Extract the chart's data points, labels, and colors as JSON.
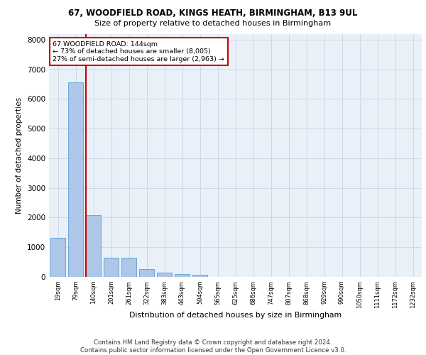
{
  "title1": "67, WOODFIELD ROAD, KINGS HEATH, BIRMINGHAM, B13 9UL",
  "title2": "Size of property relative to detached houses in Birmingham",
  "xlabel": "Distribution of detached houses by size in Birmingham",
  "ylabel": "Number of detached properties",
  "footnote": "Contains HM Land Registry data © Crown copyright and database right 2024.\nContains public sector information licensed under the Open Government Licence v3.0.",
  "property_label": "67 WOODFIELD ROAD: 144sqm",
  "annotation_line1": "← 73% of detached houses are smaller (8,005)",
  "annotation_line2": "27% of semi-detached houses are larger (2,963) →",
  "categories": [
    "19sqm",
    "79sqm",
    "140sqm",
    "201sqm",
    "261sqm",
    "322sqm",
    "383sqm",
    "443sqm",
    "504sqm",
    "565sqm",
    "625sqm",
    "686sqm",
    "747sqm",
    "807sqm",
    "868sqm",
    "929sqm",
    "990sqm",
    "1050sqm",
    "1111sqm",
    "1172sqm",
    "1232sqm"
  ],
  "values": [
    1310,
    6560,
    2090,
    650,
    650,
    260,
    135,
    100,
    70,
    0,
    0,
    0,
    0,
    0,
    0,
    0,
    0,
    0,
    0,
    0,
    0
  ],
  "bar_color": "#aec6e8",
  "bar_edge_color": "#5a9fd4",
  "vline_color": "#cc0000",
  "ylim": [
    0,
    8200
  ],
  "yticks": [
    0,
    1000,
    2000,
    3000,
    4000,
    5000,
    6000,
    7000,
    8000
  ],
  "grid_color": "#d0d8e8",
  "plot_bg_color": "#eaf0f8"
}
